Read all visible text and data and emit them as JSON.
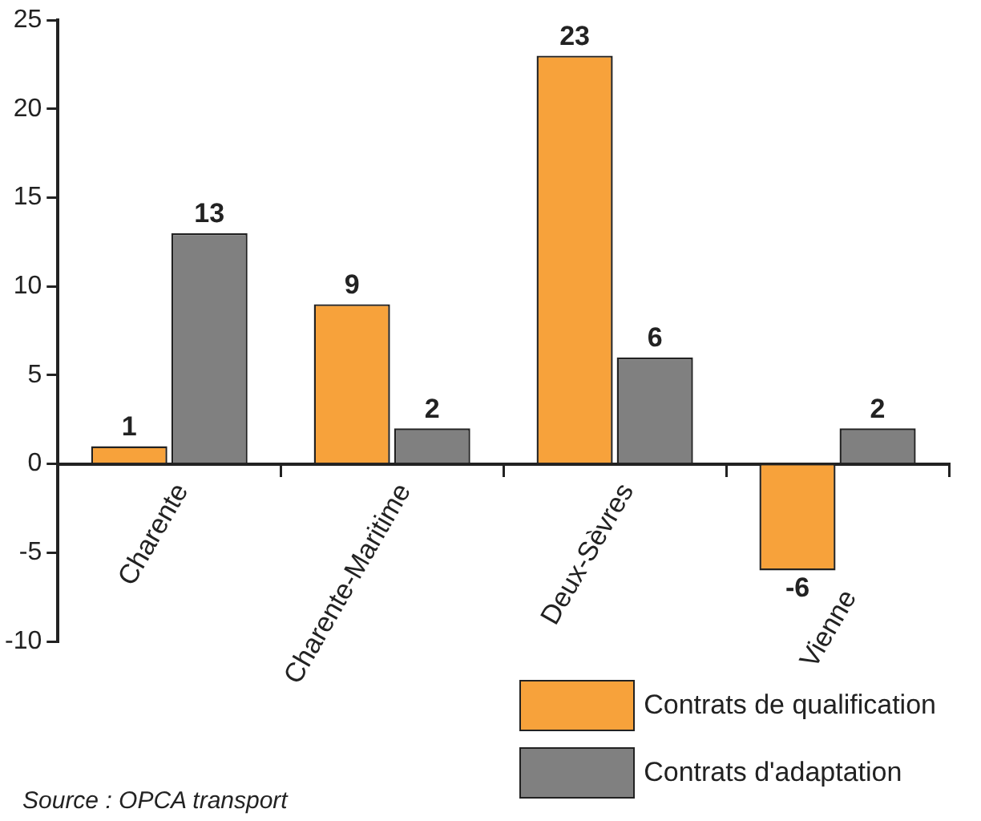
{
  "chart_data": {
    "type": "bar",
    "categories": [
      "Charente",
      "Charente-Maritime",
      "Deux-Sèvres",
      "Vienne"
    ],
    "series": [
      {
        "name": "Contrats de qualification",
        "color": "#f7a23b",
        "values": [
          1,
          9,
          23,
          -6
        ]
      },
      {
        "name": "Contrats d'adaptation",
        "color": "#808080",
        "values": [
          13,
          2,
          6,
          2
        ]
      }
    ],
    "ylim": [
      -10,
      25
    ],
    "yticks": [
      -10,
      -5,
      0,
      5,
      10,
      15,
      20,
      25
    ],
    "grid": false,
    "legend": "bottom right",
    "data_labels": true,
    "annotations": [
      "Source : OPCA transport"
    ]
  }
}
